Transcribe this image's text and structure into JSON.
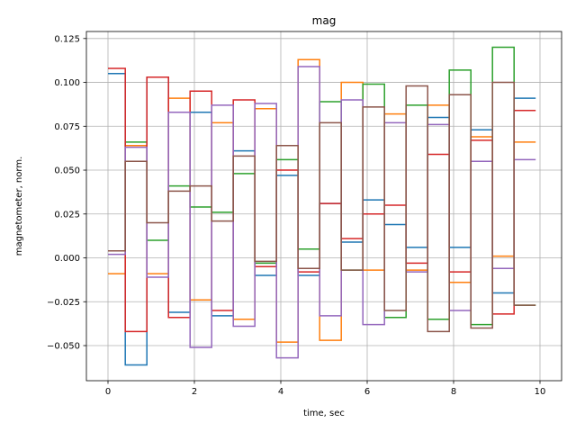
{
  "chart_data": {
    "type": "line",
    "step": "post",
    "title": "mag",
    "xlabel": "time, sec",
    "ylabel": "magnetometer, norm.",
    "xlim": [
      -0.5,
      10.5
    ],
    "ylim": [
      -0.07,
      0.129
    ],
    "xticks": [
      0,
      2,
      4,
      6,
      8,
      10
    ],
    "xtick_labels": [
      "0",
      "2",
      "4",
      "6",
      "8",
      "10"
    ],
    "yticks": [
      -0.05,
      -0.025,
      0.0,
      0.025,
      0.05,
      0.075,
      0.1,
      0.125
    ],
    "ytick_labels": [
      "−0.050",
      "−0.025",
      "0.000",
      "0.025",
      "0.050",
      "0.075",
      "0.100",
      "0.125"
    ],
    "grid": true,
    "x": [
      0,
      0.4,
      0.9,
      1.4,
      1.9,
      2.4,
      2.9,
      3.4,
      3.9,
      4.4,
      4.9,
      5.4,
      5.9,
      6.4,
      6.9,
      7.4,
      7.9,
      8.4,
      8.9,
      9.4,
      9.9
    ],
    "series": [
      {
        "color": "#1f77b4",
        "values": [
          0.105,
          -0.061,
          0.103,
          -0.031,
          0.083,
          -0.033,
          0.061,
          -0.01,
          0.047,
          -0.01,
          0.031,
          0.009,
          0.033,
          0.019,
          0.006,
          0.08,
          0.006,
          0.073,
          -0.02,
          0.091,
          0.091
        ]
      },
      {
        "color": "#ff7f0e",
        "values": [
          -0.009,
          0.064,
          -0.009,
          0.091,
          -0.024,
          0.077,
          -0.035,
          0.085,
          -0.048,
          0.113,
          -0.047,
          0.1,
          -0.007,
          0.082,
          -0.007,
          0.087,
          -0.014,
          0.069,
          0.001,
          0.066,
          0.066
        ]
      },
      {
        "color": "#2ca02c",
        "values": [
          0.004,
          0.066,
          0.01,
          0.041,
          0.029,
          0.026,
          0.048,
          -0.003,
          0.056,
          0.005,
          0.089,
          -0.007,
          0.099,
          -0.034,
          0.087,
          -0.035,
          0.107,
          -0.038,
          0.12,
          -0.027,
          -0.027
        ]
      },
      {
        "color": "#d62728",
        "values": [
          0.108,
          -0.042,
          0.103,
          -0.034,
          0.095,
          -0.03,
          0.09,
          -0.005,
          0.05,
          -0.008,
          0.031,
          0.011,
          0.025,
          0.03,
          -0.003,
          0.059,
          -0.008,
          0.067,
          -0.032,
          0.084,
          0.084
        ]
      },
      {
        "color": "#9467bd",
        "values": [
          0.002,
          0.063,
          -0.011,
          0.083,
          -0.051,
          0.087,
          -0.039,
          0.088,
          -0.057,
          0.109,
          -0.033,
          0.09,
          -0.038,
          0.077,
          -0.008,
          0.076,
          -0.03,
          0.055,
          -0.006,
          0.056,
          0.056
        ]
      },
      {
        "color": "#8c564b",
        "values": [
          0.004,
          0.055,
          0.02,
          0.038,
          0.041,
          0.021,
          0.058,
          -0.002,
          0.064,
          -0.006,
          0.077,
          -0.007,
          0.086,
          -0.03,
          0.098,
          -0.042,
          0.093,
          -0.04,
          0.1,
          -0.027,
          -0.027
        ]
      }
    ]
  }
}
